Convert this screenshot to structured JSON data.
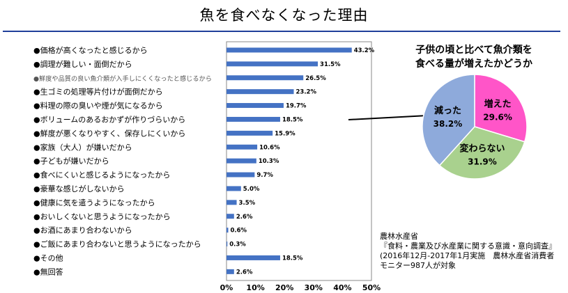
{
  "page_title": "魚を食べなくなった理由",
  "colors": {
    "bar": "#4472c4",
    "title_rule": "#1f3f9a",
    "pie_increased": "#ff55c8",
    "pie_unchanged": "#a9d18e",
    "pie_decreased": "#8eaadb"
  },
  "chart_data": [
    {
      "type": "bar",
      "orientation": "horizontal",
      "title": "",
      "bullet": "●",
      "categories": [
        "価格が高くなったと感じるから",
        "調理が難しい・面倒だから",
        "鮮度や品質の良い魚介類が入手しにくくなったと感じるから",
        "生ゴミの処理等片付けが面倒だから",
        "料理の際の臭いや煙が気になるから",
        "ボリュームのあるおかずが作りづらいから",
        "鮮度が悪くなりやすく、保存しにくいから",
        "家族（大人）が嫌いだから",
        "子どもが嫌いだから",
        "食べにくいと感じるようになったから",
        "豪華な感じがしないから",
        "健康に気を遣うようになったから",
        "おいしくないと思うようになったから",
        "お酒にあまり合わないから",
        "ご飯にあまり合わないと思うようになったから",
        "その他",
        "無回答"
      ],
      "values": [
        43.2,
        31.5,
        26.5,
        23.2,
        19.7,
        18.5,
        15.9,
        10.6,
        10.3,
        9.7,
        5.0,
        3.5,
        2.6,
        0.6,
        0.3,
        18.5,
        2.6
      ],
      "data_labels": [
        "43.2%",
        "31.5%",
        "26.5%",
        "23.2%",
        "19.7%",
        "18.5%",
        "15.9%",
        "10.6%",
        "10.3%",
        "9.7%",
        "5.0%",
        "3.5%",
        "2.6%",
        "0.6%",
        "0.3%",
        "18.5%",
        "2.6%"
      ],
      "xlim": [
        0,
        50
      ],
      "x_ticks": [
        "0%",
        "10%",
        "20%",
        "30%",
        "40%",
        "50%"
      ],
      "grid": false,
      "xlabel": "",
      "ylabel": ""
    },
    {
      "type": "pie",
      "title_lines": [
        "子供の頃と比べて魚介類を",
        "食べる量が増えたかどうか"
      ],
      "slices": [
        {
          "label": "増えた",
          "value": 29.6,
          "value_label": "29.6%",
          "color": "#ff55c8"
        },
        {
          "label": "変わらない",
          "value": 31.9,
          "value_label": "31.9%",
          "color": "#a9d18e"
        },
        {
          "label": "減った",
          "value": 38.2,
          "value_label": "38.2%",
          "color": "#8eaadb"
        }
      ],
      "start_angle_deg": 0,
      "direction": "clockwise"
    }
  ],
  "source": {
    "lines": [
      "農林水産省",
      "『食料・農業及び水産業に関する意識・意向調査』",
      "(2016年12月-2017年1月実施　農林水産省消費者",
      "モニター987人が対象"
    ]
  }
}
